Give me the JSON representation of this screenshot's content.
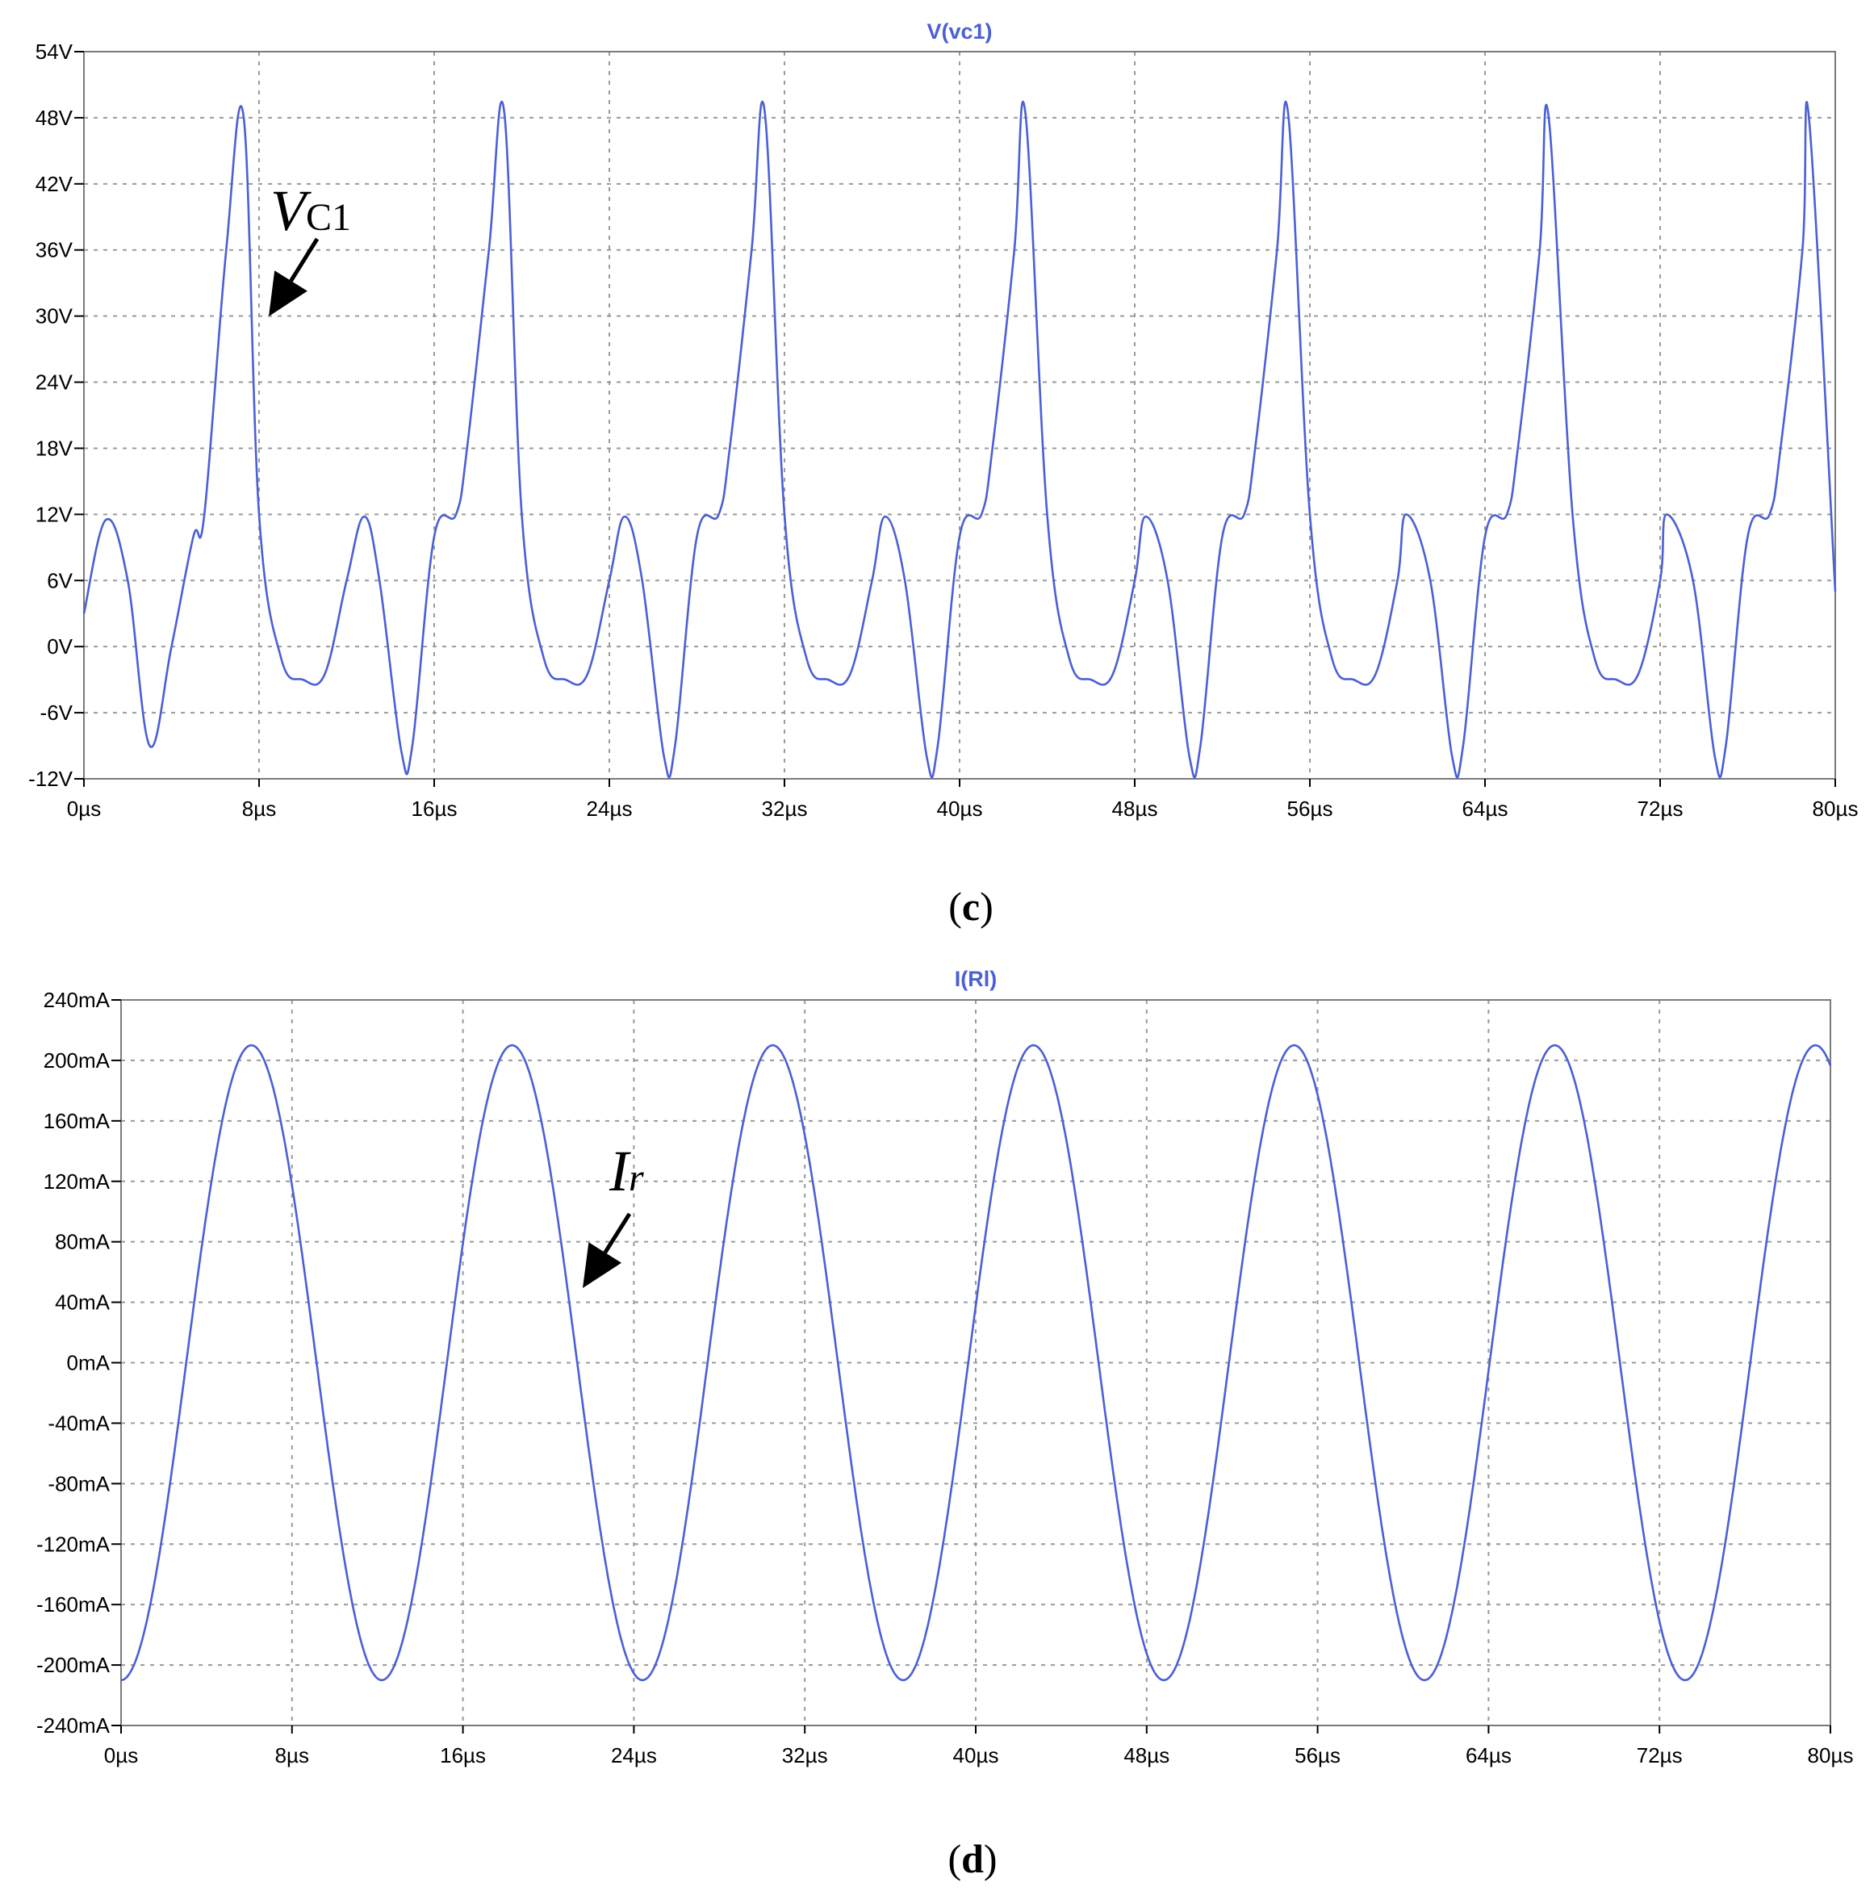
{
  "chart_data": [
    {
      "type": "line",
      "title": "V(vc1)",
      "panel_label": "c",
      "annotation": {
        "main": "V",
        "sub": "C1"
      },
      "xlabel": "",
      "ylabel": "",
      "xlim": [
        0,
        80
      ],
      "ylim": [
        -12,
        54
      ],
      "x_ticks": [
        0,
        8,
        16,
        24,
        32,
        40,
        48,
        56,
        64,
        72,
        80
      ],
      "x_tick_labels": [
        "0µs",
        "8µs",
        "16µs",
        "24µs",
        "32µs",
        "40µs",
        "48µs",
        "56µs",
        "64µs",
        "72µs",
        "80µs"
      ],
      "y_ticks": [
        54,
        48,
        42,
        36,
        30,
        24,
        18,
        12,
        6,
        0,
        -6,
        -12
      ],
      "y_tick_labels": [
        "54V",
        "48V",
        "42V",
        "36V",
        "30V",
        "24V",
        "18V",
        "12V",
        "6V",
        "0V",
        "-6V",
        "-12V"
      ],
      "grid": true,
      "color": "#4b5fd6",
      "series": [
        {
          "x": [
            0,
            1,
            2,
            3,
            4,
            5,
            5.5,
            6.5,
            7.3,
            8,
            9,
            10,
            11,
            12,
            12.8,
            13.5,
            14.5,
            15,
            16,
            17,
            17.5,
            18.5,
            19.2,
            20,
            21,
            22,
            23,
            24,
            24.7,
            25.5,
            26.5,
            27,
            28,
            29,
            29.5,
            30.5,
            31.1,
            32,
            33,
            34,
            35,
            36,
            36.6,
            37.5,
            38.5,
            39,
            40,
            41,
            41.5,
            42.5,
            43,
            44,
            45,
            46,
            47,
            48,
            48.5,
            49.5,
            50.5,
            51,
            52,
            53,
            53.5,
            54.5,
            55,
            56,
            57,
            58,
            59,
            60,
            60.4,
            61.5,
            62.5,
            63,
            64,
            65,
            65.5,
            66.5,
            66.9,
            68,
            69,
            70,
            71,
            72,
            72.3,
            73.5,
            74.5,
            75,
            76,
            77,
            77.5,
            78.5,
            78.8,
            80
          ],
          "y": [
            3,
            11.5,
            6,
            -9,
            0,
            10,
            12,
            36,
            48,
            12,
            -1,
            -3,
            -2.5,
            6,
            11.8,
            6,
            -9.5,
            -9,
            10,
            12,
            18,
            36,
            48.5,
            12,
            -1,
            -3,
            -2.5,
            6,
            11.8,
            6,
            -10,
            -9,
            10,
            12,
            18,
            36,
            48.5,
            12,
            -1,
            -3,
            -2.5,
            6,
            11.8,
            6,
            -10,
            -9,
            10,
            12,
            18,
            36,
            48.5,
            12,
            -1,
            -3,
            -2.5,
            6,
            11.8,
            6,
            -10,
            -9,
            10,
            12,
            18,
            36,
            48.5,
            12,
            -1,
            -3,
            -2.5,
            6,
            12,
            6,
            -10,
            -9,
            10,
            12,
            18,
            36,
            48.2,
            12,
            -1,
            -3,
            -2.5,
            6,
            12,
            6,
            -10,
            -9,
            10,
            12,
            18,
            36,
            48,
            5
          ]
        }
      ]
    },
    {
      "type": "line",
      "title": "I(Rl)",
      "panel_label": "d",
      "annotation": {
        "main": "I",
        "sub": "r"
      },
      "xlabel": "",
      "ylabel": "",
      "xlim": [
        0,
        80
      ],
      "ylim": [
        -240,
        240
      ],
      "x_ticks": [
        0,
        8,
        16,
        24,
        32,
        40,
        48,
        56,
        64,
        72,
        80
      ],
      "x_tick_labels": [
        "0µs",
        "8µs",
        "16µs",
        "24µs",
        "32µs",
        "40µs",
        "48µs",
        "56µs",
        "64µs",
        "72µs",
        "80µs"
      ],
      "y_ticks": [
        240,
        200,
        160,
        120,
        80,
        40,
        0,
        -40,
        -80,
        -120,
        -160,
        -200,
        -240
      ],
      "y_tick_labels": [
        "240mA",
        "200mA",
        "160mA",
        "120mA",
        "80mA",
        "40mA",
        "0mA",
        "-40mA",
        "-80mA",
        "-120mA",
        "-160mA",
        "-200mA",
        "-240mA"
      ],
      "grid": true,
      "color": "#4b5fd6",
      "series": [
        {
          "amplitude": 210,
          "period": 12.2,
          "x_at_first_peak": 6.1,
          "x": [
            0,
            3.05,
            6.1,
            9.15,
            12.2,
            15.25,
            18.3,
            21.35,
            24.4,
            27.45,
            30.5,
            33.55,
            36.6,
            39.65,
            42.7,
            45.75,
            48.8,
            51.85,
            54.9,
            57.95,
            61.0,
            64.05,
            67.1,
            70.15,
            73.2,
            76.25,
            79.3,
            80
          ],
          "y": [
            -210,
            0,
            210,
            0,
            -214,
            0,
            210,
            0,
            -214,
            0,
            210,
            0,
            -214,
            0,
            210,
            0,
            -214,
            0,
            210,
            0,
            -214,
            0,
            210,
            0,
            -214,
            0,
            210,
            205
          ]
        }
      ]
    }
  ]
}
